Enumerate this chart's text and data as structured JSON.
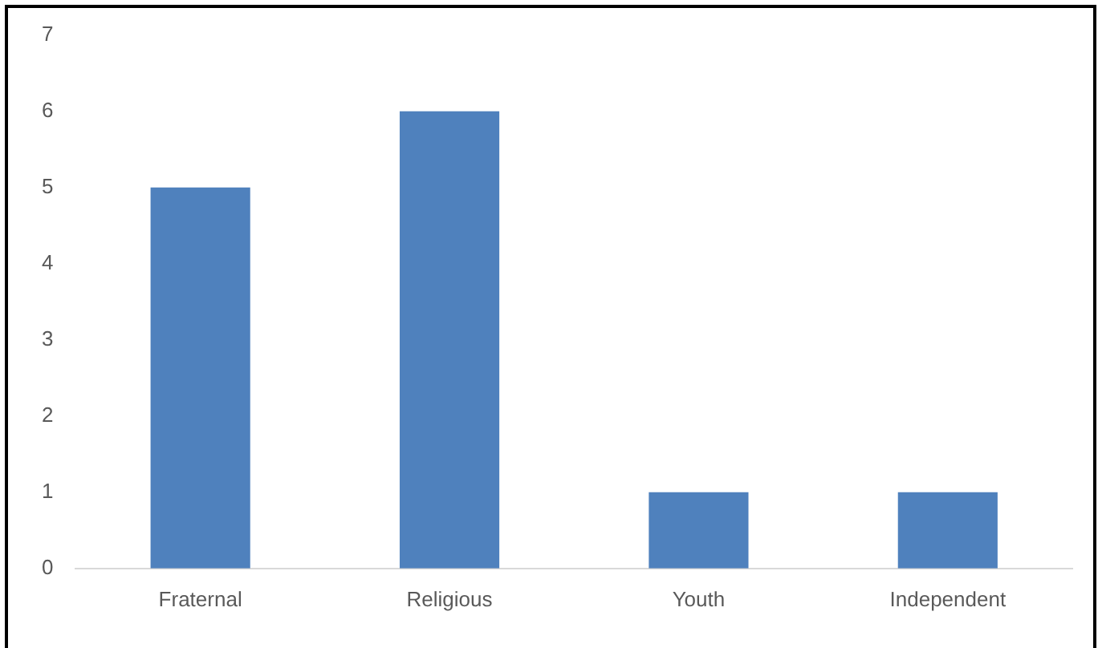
{
  "chart_data": {
    "type": "bar",
    "categories": [
      "Fraternal",
      "Religious",
      "Youth",
      "Independent"
    ],
    "values": [
      5,
      6,
      1,
      1
    ],
    "color": "#4f81bd",
    "ylim": [
      0,
      7
    ],
    "yticks": [
      0,
      1,
      2,
      3,
      4,
      5,
      6,
      7
    ]
  }
}
